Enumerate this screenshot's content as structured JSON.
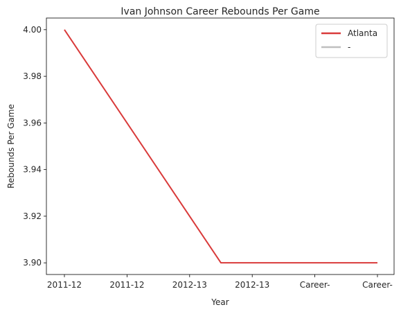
{
  "chart_data": {
    "type": "line",
    "title": "Ivan Johnson  Career Rebounds Per Game",
    "xlabel": "Year",
    "ylabel": "Rebounds Per Game",
    "categories": [
      "2011-12",
      "2011-12",
      "2012-13",
      "2012-13",
      "Career-",
      "Career-"
    ],
    "y_ticks": [
      "3.90",
      "3.92",
      "3.94",
      "3.96",
      "3.98",
      "4.00"
    ],
    "ylim": [
      3.895,
      4.005
    ],
    "grid": false,
    "legend_position": "top-right",
    "series": [
      {
        "name": "Atlanta",
        "color": "#d93a3a",
        "points": [
          [
            0,
            4.0
          ],
          [
            2.5,
            3.9
          ],
          [
            5,
            3.9
          ]
        ]
      },
      {
        "name": "-",
        "color": "#bfbfbf",
        "points": []
      }
    ]
  }
}
